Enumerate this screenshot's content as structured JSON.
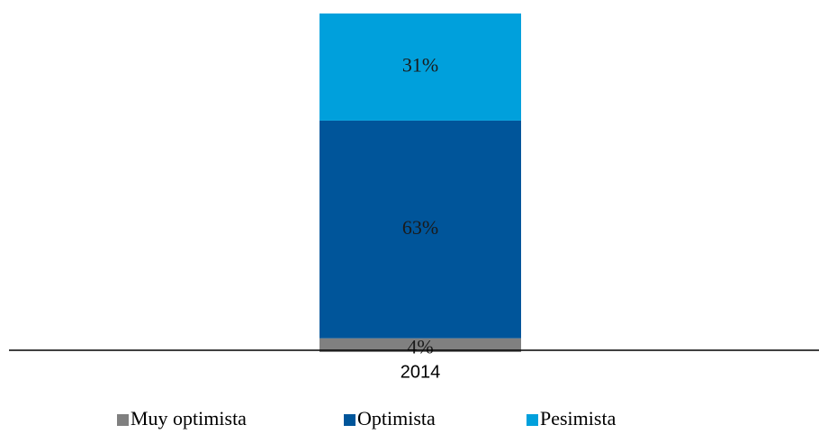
{
  "chart_data": {
    "type": "stacked_bar",
    "categories": [
      "2014"
    ],
    "series": [
      {
        "name": "Muy optimista",
        "color": "#808080",
        "values": [
          4
        ],
        "value_labels": [
          "4%"
        ]
      },
      {
        "name": "Optimista",
        "color": "#00559a",
        "values": [
          63
        ],
        "value_labels": [
          "63%"
        ]
      },
      {
        "name": "Pesimista",
        "color": "#00a0dc",
        "values": [
          31
        ],
        "value_labels": [
          "31%"
        ]
      }
    ],
    "ylim": [
      0,
      98
    ]
  }
}
